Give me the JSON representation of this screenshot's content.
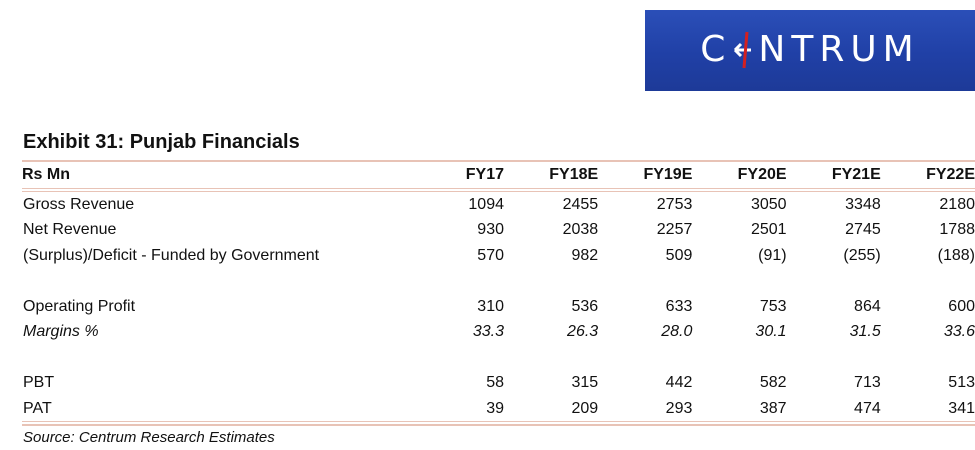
{
  "logo": {
    "text": "CNTRUM",
    "brand": "CENTRUM",
    "bg_color": "#2345ad",
    "accent_color": "#d42020"
  },
  "exhibit": {
    "title": "Exhibit 31: Punjab Financials",
    "source": "Source: Centrum Research Estimates"
  },
  "table": {
    "header_label": "Rs Mn",
    "years": [
      "FY17",
      "FY18E",
      "FY19E",
      "FY20E",
      "FY21E",
      "FY22E"
    ],
    "rows": [
      {
        "label": "Gross Revenue",
        "values": [
          "1094",
          "2455",
          "2753",
          "3050",
          "3348",
          "2180"
        ]
      },
      {
        "label": "Net Revenue",
        "values": [
          "930",
          "2038",
          "2257",
          "2501",
          "2745",
          "1788"
        ]
      },
      {
        "label": "(Surplus)/Deficit - Funded by Government",
        "values": [
          "570",
          "982",
          "509",
          "(91)",
          "(255)",
          "(188)"
        ]
      },
      {
        "label": "Operating Profit",
        "values": [
          "310",
          "536",
          "633",
          "753",
          "864",
          "600"
        ]
      },
      {
        "label": "Margins %",
        "values": [
          "33.3",
          "26.3",
          "28.0",
          "30.1",
          "31.5",
          "33.6"
        ]
      },
      {
        "label": "PBT",
        "values": [
          "58",
          "315",
          "442",
          "582",
          "713",
          "513"
        ]
      },
      {
        "label": "PAT",
        "values": [
          "39",
          "209",
          "293",
          "387",
          "474",
          "341"
        ]
      }
    ]
  }
}
